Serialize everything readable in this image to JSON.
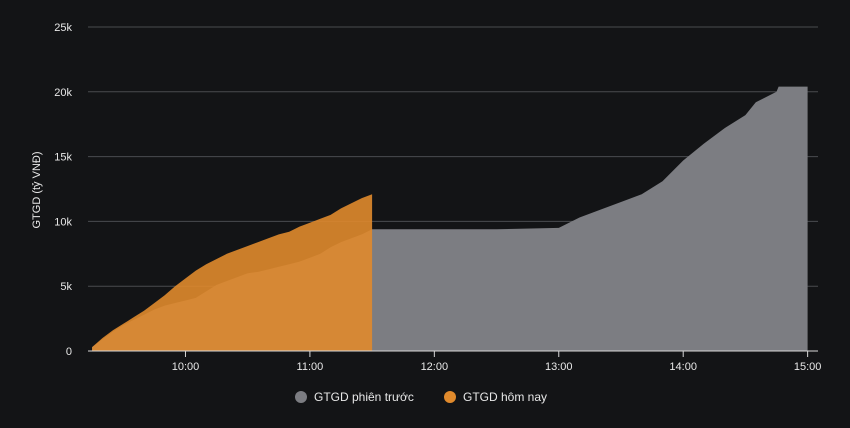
{
  "chart_data": {
    "type": "area",
    "ylabel": "GTGD (tỷ VNĐ)",
    "xlabel": "",
    "ylim": [
      0,
      25000
    ],
    "y_ticks": [
      0,
      5000,
      10000,
      15000,
      20000,
      25000
    ],
    "y_tick_labels": [
      "0",
      "5k",
      "10k",
      "15k",
      "20k",
      "25k"
    ],
    "x_ticks": [
      "10:00",
      "11:00",
      "12:00",
      "13:00",
      "14:00",
      "15:00"
    ],
    "xlim": [
      "09:15",
      "15:05"
    ],
    "grid": "horizontal",
    "legend_position": "bottom-center",
    "series": [
      {
        "name": "GTGD phiên trước",
        "color": "#7c7d82",
        "points": [
          [
            "09:15",
            300
          ],
          [
            "09:20",
            900
          ],
          [
            "09:25",
            1500
          ],
          [
            "09:30",
            2000
          ],
          [
            "09:35",
            2400
          ],
          [
            "09:40",
            2800
          ],
          [
            "09:45",
            3200
          ],
          [
            "09:50",
            3500
          ],
          [
            "09:55",
            3700
          ],
          [
            "10:00",
            3900
          ],
          [
            "10:05",
            4100
          ],
          [
            "10:10",
            4600
          ],
          [
            "10:15",
            5100
          ],
          [
            "10:20",
            5400
          ],
          [
            "10:25",
            5700
          ],
          [
            "10:30",
            6000
          ],
          [
            "10:35",
            6100
          ],
          [
            "10:40",
            6300
          ],
          [
            "10:45",
            6500
          ],
          [
            "10:50",
            6700
          ],
          [
            "10:55",
            6900
          ],
          [
            "11:00",
            7200
          ],
          [
            "11:05",
            7500
          ],
          [
            "11:10",
            8000
          ],
          [
            "11:15",
            8400
          ],
          [
            "11:20",
            8700
          ],
          [
            "11:25",
            9000
          ],
          [
            "11:30",
            9400
          ],
          [
            "12:00",
            9400
          ],
          [
            "12:30",
            9400
          ],
          [
            "13:00",
            9500
          ],
          [
            "13:10",
            10300
          ],
          [
            "13:20",
            10900
          ],
          [
            "13:30",
            11500
          ],
          [
            "13:40",
            12100
          ],
          [
            "13:50",
            13100
          ],
          [
            "14:00",
            14700
          ],
          [
            "14:10",
            16000
          ],
          [
            "14:20",
            17200
          ],
          [
            "14:30",
            18200
          ],
          [
            "14:35",
            19200
          ],
          [
            "14:40",
            19600
          ],
          [
            "14:45",
            20000
          ],
          [
            "14:46",
            20400
          ],
          [
            "15:00",
            20400
          ]
        ]
      },
      {
        "name": "GTGD hôm nay",
        "color": "#e08a2c",
        "points": [
          [
            "09:15",
            300
          ],
          [
            "09:20",
            1000
          ],
          [
            "09:25",
            1600
          ],
          [
            "09:30",
            2100
          ],
          [
            "09:35",
            2600
          ],
          [
            "09:40",
            3100
          ],
          [
            "09:45",
            3700
          ],
          [
            "09:50",
            4300
          ],
          [
            "09:55",
            5000
          ],
          [
            "10:00",
            5600
          ],
          [
            "10:05",
            6200
          ],
          [
            "10:10",
            6700
          ],
          [
            "10:15",
            7100
          ],
          [
            "10:20",
            7500
          ],
          [
            "10:25",
            7800
          ],
          [
            "10:30",
            8100
          ],
          [
            "10:35",
            8400
          ],
          [
            "10:40",
            8700
          ],
          [
            "10:45",
            9000
          ],
          [
            "10:50",
            9200
          ],
          [
            "10:55",
            9600
          ],
          [
            "11:00",
            9900
          ],
          [
            "11:05",
            10200
          ],
          [
            "11:10",
            10500
          ],
          [
            "11:15",
            11000
          ],
          [
            "11:20",
            11400
          ],
          [
            "11:25",
            11800
          ],
          [
            "11:30",
            12100
          ]
        ]
      }
    ]
  }
}
